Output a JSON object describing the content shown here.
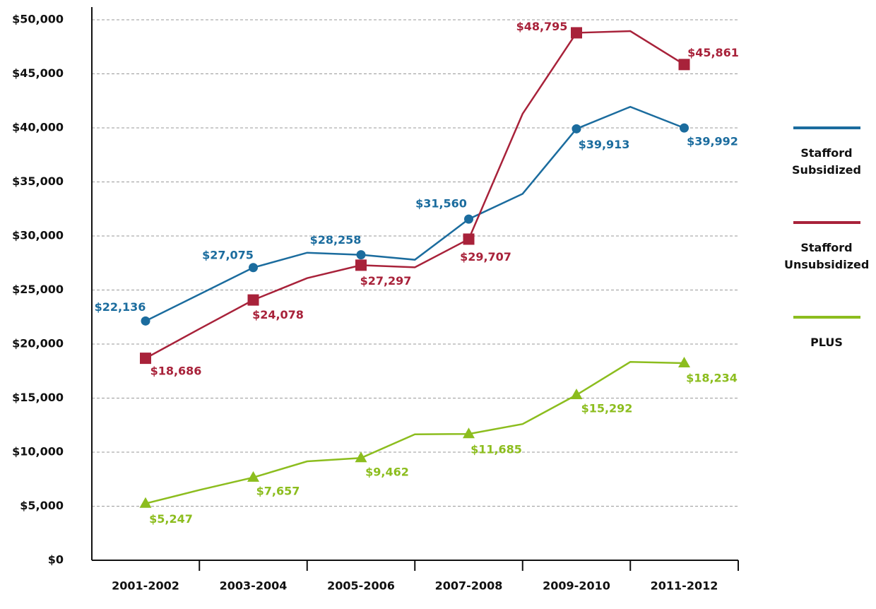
{
  "chart_data": {
    "type": "line",
    "categories": [
      "2001-2002",
      null,
      "2003-2004",
      null,
      "2005-2006",
      null,
      "2007-2008",
      null,
      "2009-2010",
      null,
      "2011-2012"
    ],
    "ylim": [
      0,
      50000
    ],
    "yticks": [
      {
        "value": 0,
        "label": "$0"
      },
      {
        "value": 5000,
        "label": "$5,000"
      },
      {
        "value": 10000,
        "label": "$10,000"
      },
      {
        "value": 15000,
        "label": "$15,000"
      },
      {
        "value": 20000,
        "label": "$20,000"
      },
      {
        "value": 25000,
        "label": "$25,000"
      },
      {
        "value": 30000,
        "label": "$30,000"
      },
      {
        "value": 35000,
        "label": "$35,000"
      },
      {
        "value": 40000,
        "label": "$40,000"
      },
      {
        "value": 45000,
        "label": "$45,000"
      },
      {
        "value": 50000,
        "label": "$50,000"
      }
    ],
    "grid": true,
    "legend": "right",
    "series": [
      {
        "name": "Stafford Subsidized",
        "color": "#1b6c9e",
        "marker": "circle",
        "values": [
          22136,
          24600,
          27075,
          28450,
          28258,
          27800,
          31560,
          33900,
          39913,
          41950,
          39992
        ],
        "value_labels": [
          "$22,136",
          null,
          "$27,075",
          null,
          "$28,258",
          null,
          "$31,560",
          null,
          "$39,913",
          null,
          "$39,992"
        ]
      },
      {
        "name": "Stafford Unsubsidized",
        "color": "#a8223a",
        "marker": "square",
        "values": [
          18686,
          21400,
          24078,
          26100,
          27297,
          27100,
          29707,
          41300,
          48795,
          48950,
          45861
        ],
        "value_labels": [
          "$18,686",
          null,
          "$24,078",
          null,
          "$27,297",
          null,
          "$29,707",
          null,
          "$48,795",
          null,
          "$45,861"
        ]
      },
      {
        "name": "PLUS",
        "color": "#8cbd1e",
        "marker": "triangle",
        "values": [
          5247,
          6500,
          7657,
          9150,
          9462,
          11650,
          11685,
          12600,
          15292,
          18350,
          18234
        ],
        "value_labels": [
          "$5,247",
          null,
          "$7,657",
          null,
          "$9,462",
          null,
          "$11,685",
          null,
          "$15,292",
          null,
          "$18,234"
        ]
      }
    ]
  }
}
